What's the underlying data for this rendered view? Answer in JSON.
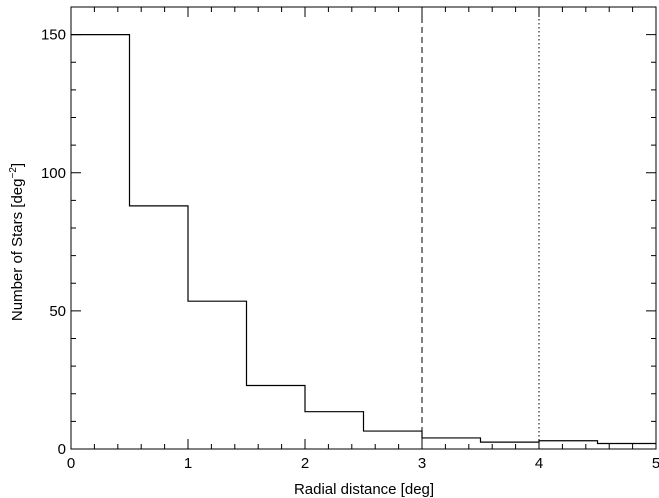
{
  "chart_data": {
    "type": "histogram",
    "xlabel": "Radial distance [deg]",
    "ylabel_main": "Number of Stars [deg",
    "ylabel_sup": "−2",
    "ylabel_close": "]",
    "xlim": [
      0,
      5
    ],
    "ylim": [
      0,
      160
    ],
    "xticks": [
      "0",
      "1",
      "2",
      "3",
      "4",
      "5"
    ],
    "yticks": [
      "0",
      "50",
      "100",
      "150"
    ],
    "bin_width": 0.5,
    "bins": [
      {
        "x0": 0.0,
        "x1": 0.5,
        "value": 150
      },
      {
        "x0": 0.5,
        "x1": 1.0,
        "value": 88
      },
      {
        "x0": 1.0,
        "x1": 1.5,
        "value": 53.5
      },
      {
        "x0": 1.5,
        "x1": 2.0,
        "value": 23
      },
      {
        "x0": 2.0,
        "x1": 2.5,
        "value": 13.5
      },
      {
        "x0": 2.5,
        "x1": 3.0,
        "value": 6.5
      },
      {
        "x0": 3.0,
        "x1": 3.5,
        "value": 4
      },
      {
        "x0": 3.5,
        "x1": 4.0,
        "value": 2.5
      },
      {
        "x0": 4.0,
        "x1": 4.5,
        "value": 3
      },
      {
        "x0": 4.5,
        "x1": 5.0,
        "value": 2
      }
    ],
    "vlines": [
      {
        "x": 3,
        "style": "dashed"
      },
      {
        "x": 4,
        "style": "dotted"
      }
    ],
    "grid": false,
    "line_color": "#000000"
  }
}
